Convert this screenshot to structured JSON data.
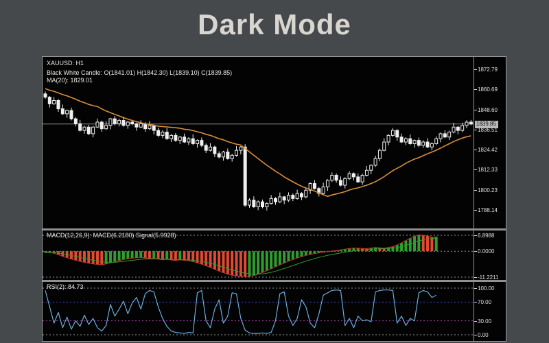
{
  "title": "Dark Mode",
  "colors": {
    "page_bg": "#46494c",
    "panel_bg": "#030303",
    "border": "#9b9d9e",
    "title_text": "#d9d6d2",
    "legend_text": "#eceae7",
    "candle": "#efefef",
    "candle_up_fill": "#030303",
    "candle_down_fill": "#efefef",
    "ma_line": "#d8903c",
    "current_price_line": "#8d8d8d",
    "price_label_bg": "#b9b9b9",
    "price_label_text": "#0a0a0a",
    "macd_up": "#2f9e2f",
    "macd_down": "#e14a33",
    "macd_line": "#c2372a",
    "signal_line": "#2f9e2f",
    "grid_gray": "#9a9a9a",
    "rsi_line": "#6aaede",
    "level_70": "#3c55cc",
    "level_30": "#b03cb0"
  },
  "main_chart": {
    "symbol_line": "XAUUSD: H1",
    "candle_line": "Black White Candle: O(1841.01) H(1842.30) L(1839.10) C(1839.85)",
    "ma_line_label": "MA(20): 1829.01",
    "current_price": "1839.85",
    "current_price_value": 1839.85,
    "y_ticks": [
      "1872.79",
      "1860.69",
      "1848.60",
      "1836.51",
      "1824.42",
      "1812.33",
      "1800.23",
      "1788.14"
    ],
    "open_first": 1858,
    "last_candle": [
      1841.01,
      1842.3,
      1839.1,
      1839.85
    ],
    "ma_seed": [
      1866,
      1864.5,
      1863,
      1861.5,
      1860.5,
      1859.5,
      1858.5
    ],
    "wick_up": [
      1.4,
      0.7,
      2.1,
      0.9,
      2.6,
      0.6,
      1.7,
      1.1,
      2.3,
      0.8
    ],
    "wick_dn": [
      0.9,
      2.2,
      0.6,
      1.8,
      0.8,
      2.4,
      1.0,
      1.6,
      0.7,
      2.0
    ],
    "closes": [
      1856,
      1852,
      1854,
      1849,
      1846,
      1848,
      1843,
      1840,
      1836,
      1838,
      1834,
      1838,
      1841,
      1837,
      1839,
      1843,
      1840,
      1842,
      1839,
      1841,
      1840,
      1838,
      1840,
      1837,
      1839,
      1836,
      1833,
      1835,
      1831,
      1833,
      1830,
      1832,
      1829,
      1831,
      1828,
      1830,
      1827,
      1824,
      1826,
      1822,
      1820,
      1823,
      1819,
      1821,
      1824,
      1826,
      1791,
      1794,
      1790,
      1793,
      1790,
      1792,
      1795,
      1793,
      1796,
      1794,
      1797,
      1795,
      1798,
      1796,
      1800,
      1804,
      1801,
      1798,
      1802,
      1806,
      1809,
      1806,
      1803,
      1807,
      1810,
      1808,
      1805,
      1809,
      1812,
      1815,
      1819,
      1824,
      1829,
      1833,
      1836,
      1832,
      1829,
      1831,
      1828,
      1830,
      1827,
      1829,
      1826,
      1828,
      1831,
      1834,
      1832,
      1835,
      1838,
      1836,
      1839,
      1841,
      1839.85
    ]
  },
  "macd": {
    "legend": "MACD(12,26,9): MACD(6.2180) Signal(5.9928)",
    "y_ticks": [
      "6.8988",
      "0.0000",
      "-11.2211"
    ],
    "values": [
      -0.6,
      -0.5,
      -0.9,
      -1.5,
      -2.2,
      -2.8,
      -3.4,
      -3.9,
      -4.4,
      -4.8,
      -5.2,
      -5.5,
      -5.7,
      -5.8,
      -5.5,
      -5.0,
      -4.5,
      -4.0,
      -3.6,
      -3.3,
      -3.0,
      -2.8,
      -2.7,
      -2.9,
      -3.2,
      -3.0,
      -3.4,
      -3.7,
      -3.5,
      -3.8,
      -4.0,
      -3.7,
      -3.9,
      -4.1,
      -4.5,
      -5.0,
      -5.6,
      -6.3,
      -7.0,
      -7.8,
      -8.6,
      -9.3,
      -9.9,
      -10.4,
      -10.7,
      -10.9,
      -11.0,
      -10.9,
      -10.5,
      -9.9,
      -9.2,
      -8.4,
      -7.6,
      -6.7,
      -5.9,
      -5.1,
      -4.3,
      -3.6,
      -2.9,
      -2.3,
      -1.8,
      -1.4,
      -1.0,
      -0.7,
      -0.4,
      -0.2,
      0.1,
      0.3,
      0.6,
      0.9,
      1.2,
      1.4,
      1.3,
      1.2,
      1.1,
      1.4,
      1.6,
      1.5,
      1.3,
      1.6,
      2.0,
      2.7,
      3.6,
      4.6,
      5.6,
      6.5,
      7.1,
      6.9,
      6.6,
      6.1,
      6.22
    ]
  },
  "rsi": {
    "legend": "RSI(2): 84.73",
    "levels": [
      {
        "label": "100.00",
        "value": 100,
        "color": "#9a9a9a"
      },
      {
        "label": "70.00",
        "value": 70,
        "color": "#3c55cc"
      },
      {
        "label": "30.00",
        "value": 30,
        "color": "#b03cb0"
      },
      {
        "label": "0.00",
        "value": 0,
        "color": "#9a9a9a"
      }
    ],
    "values": [
      95,
      60,
      25,
      48,
      15,
      38,
      12,
      30,
      18,
      42,
      22,
      35,
      15,
      8,
      20,
      65,
      40,
      55,
      72,
      45,
      68,
      80,
      55,
      88,
      95,
      92,
      60,
      35,
      18,
      8,
      5,
      4,
      3,
      5,
      4,
      90,
      95,
      30,
      15,
      55,
      75,
      25,
      40,
      90,
      88,
      35,
      10,
      4,
      3,
      3,
      4,
      3,
      5,
      30,
      88,
      92,
      40,
      20,
      35,
      75,
      60,
      25,
      15,
      45,
      85,
      90,
      95,
      96,
      95,
      20,
      35,
      15,
      40,
      30,
      32,
      28,
      92,
      95,
      96,
      96,
      95,
      25,
      40,
      20,
      35,
      30,
      90,
      95,
      92,
      80,
      84.73
    ]
  }
}
